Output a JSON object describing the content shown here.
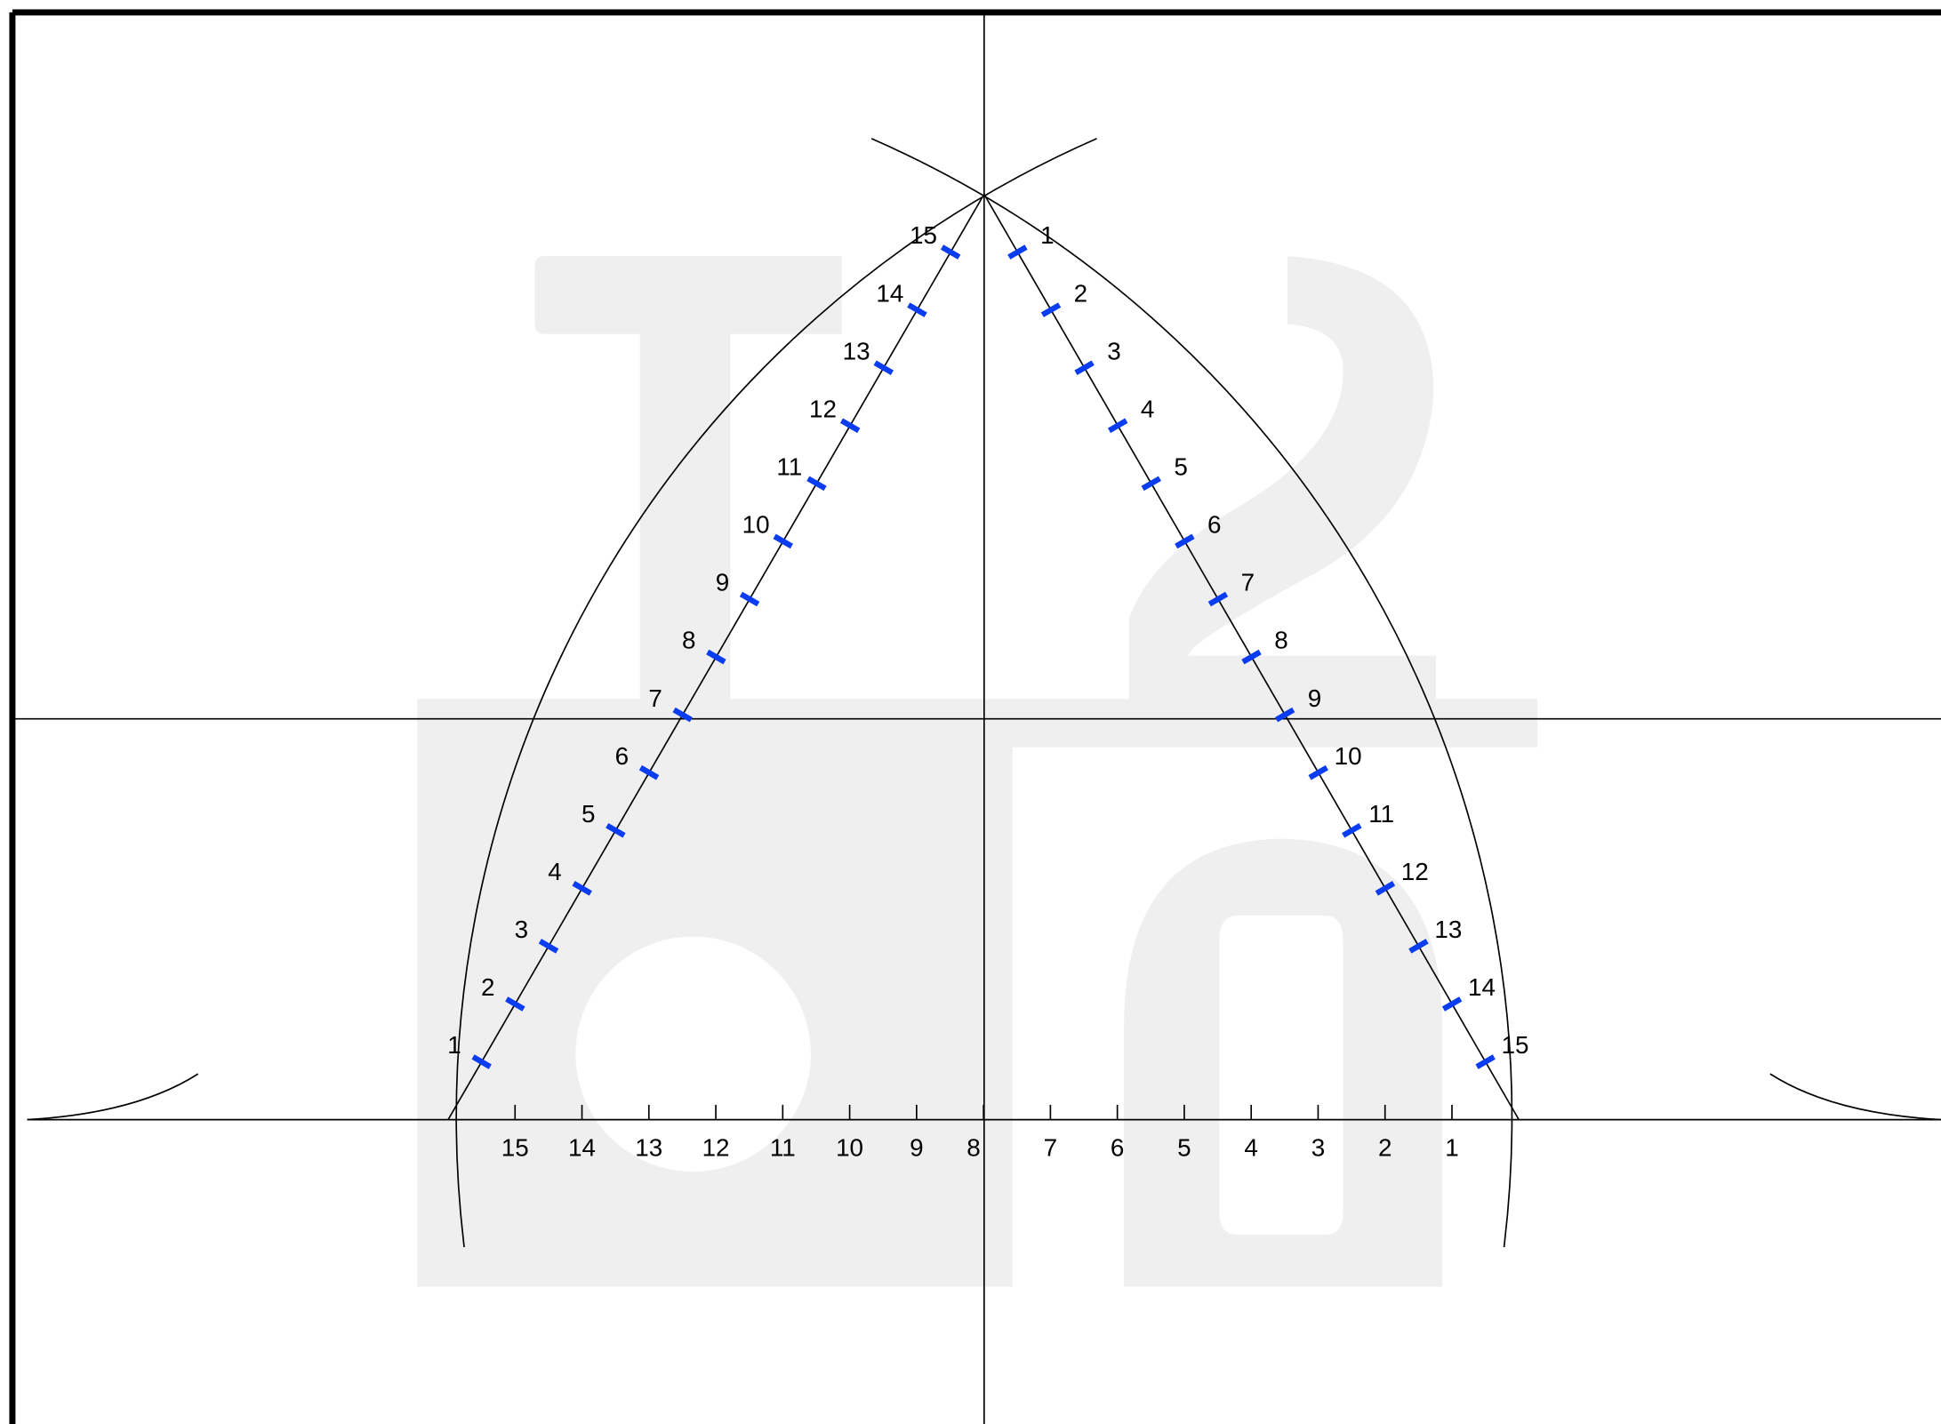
{
  "left_edge_labels": [
    "1",
    "2",
    "3",
    "4",
    "5",
    "6",
    "7",
    "8",
    "9",
    "10",
    "11",
    "12",
    "13",
    "14",
    "15"
  ],
  "right_edge_labels": [
    "1",
    "2",
    "3",
    "4",
    "5",
    "6",
    "7",
    "8",
    "9",
    "10",
    "11",
    "12",
    "13",
    "14",
    "15"
  ],
  "base_labels": [
    "15",
    "14",
    "13",
    "12",
    "11",
    "10",
    "9",
    "8",
    "7",
    "6",
    "5",
    "4",
    "3",
    "2",
    "1"
  ]
}
